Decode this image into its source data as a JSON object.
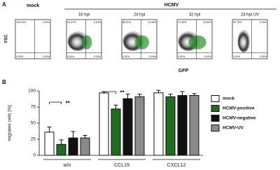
{
  "panel_a": {
    "label": "A",
    "mock_label": "mock",
    "group_label": "HCMV",
    "y_label": "FSC",
    "x_label": "GFP",
    "plots": [
      {
        "title": null,
        "quadrants": [
          "100.00%",
          "0.00%",
          "0.00%",
          "0.00%"
        ]
      },
      {
        "title": "16 hpi",
        "quadrants": [
          "94.47%",
          "5.53%",
          "0.00%",
          "0.00%"
        ]
      },
      {
        "title": "24 hpi",
        "quadrants": [
          "85.51%",
          "14.49%",
          "0.00%",
          "0.00%"
        ]
      },
      {
        "title": "32 hpi",
        "quadrants": [
          "79.38%",
          "20.62%",
          "0.00%",
          "0.00%"
        ]
      },
      {
        "title": "24 hpi UV",
        "quadrants": [
          "99.75%",
          "0.25%",
          "0.00%",
          "0.00%"
        ]
      }
    ]
  },
  "chart_data": {
    "type": "bar",
    "panel_label": "B",
    "y_label": "migrated cells [%]",
    "categories": [
      "w/o",
      "CCL19",
      "CXCL12"
    ],
    "series": [
      {
        "name": "mock",
        "color": "#ffffff",
        "values": [
          36,
          97,
          97
        ],
        "errors": [
          8,
          2,
          4
        ]
      },
      {
        "name": "HCMV-positive",
        "color": "#1f6e1f",
        "values": [
          17,
          72,
          91
        ],
        "errors": [
          7,
          6,
          4
        ]
      },
      {
        "name": "HCMV-negative",
        "color": "#111111",
        "values": [
          27,
          88,
          93
        ],
        "errors": [
          10,
          7,
          6
        ]
      },
      {
        "name": "HCMV-UV",
        "color": "#8a8a8a",
        "values": [
          27,
          91,
          93
        ],
        "errors": [
          4,
          4,
          3
        ]
      }
    ],
    "annotations": [
      "**",
      "**"
    ],
    "ylim": [
      0,
      100
    ],
    "yticks": [
      0,
      25,
      50,
      75,
      100
    ]
  }
}
